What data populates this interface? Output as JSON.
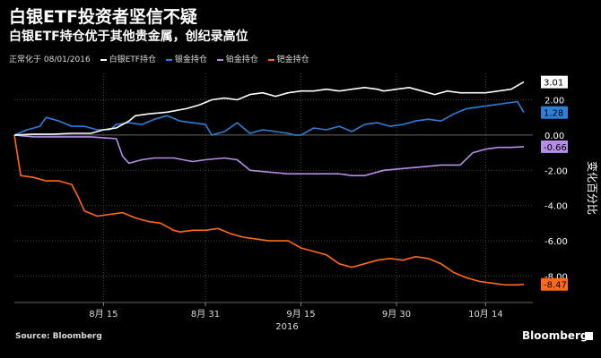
{
  "title": "白银ETF投资者坚信不疑",
  "subtitle": "白银ETF持仓优于其他贵金属，创纪录高位",
  "source": "Source: Bloomberg",
  "brand": "Bloomberg",
  "chart_data": {
    "type": "line",
    "normalized_label": "正常化于 08/01/2016",
    "ylabel": "变化百分比",
    "ylim": [
      -9.5,
      3.5
    ],
    "yticks": [
      {
        "v": 2,
        "label": "2.00"
      },
      {
        "v": 0,
        "label": "0.00"
      },
      {
        "v": -2,
        "label": "-2.00"
      },
      {
        "v": -4,
        "label": "-4.00"
      },
      {
        "v": -6,
        "label": "-6.00"
      },
      {
        "v": -8,
        "label": "-8.00"
      }
    ],
    "xlim": [
      0,
      80
    ],
    "xticks": [
      {
        "d": 14,
        "label": "8月 15"
      },
      {
        "d": 30,
        "label": "8月 31"
      },
      {
        "d": 45,
        "label": "9月 15"
      },
      {
        "d": 60,
        "label": "9月 30"
      },
      {
        "d": 74,
        "label": "10月 14"
      }
    ],
    "xyear": "2016",
    "series": [
      {
        "name": "白银ETF持仓",
        "color": "#ffffff",
        "last_label": "3.01",
        "x": [
          0,
          3,
          6,
          9,
          12,
          14,
          16,
          18,
          19,
          21,
          24,
          27,
          29,
          31,
          33,
          35,
          37,
          39,
          41,
          43,
          45,
          47,
          49,
          51,
          53,
          55,
          57,
          58,
          60,
          62,
          64,
          66,
          68,
          70,
          72,
          74,
          76,
          78,
          80
        ],
        "values": [
          0,
          0.05,
          0.05,
          0.1,
          0.1,
          0.3,
          0.4,
          0.8,
          1.1,
          1.2,
          1.3,
          1.5,
          1.7,
          2.0,
          2.1,
          2.0,
          2.3,
          2.4,
          2.2,
          2.4,
          2.5,
          2.5,
          2.6,
          2.5,
          2.6,
          2.7,
          2.6,
          2.5,
          2.6,
          2.7,
          2.5,
          2.3,
          2.5,
          2.4,
          2.4,
          2.4,
          2.5,
          2.6,
          3.01
        ]
      },
      {
        "name": "银金持仓",
        "color": "#2e7fd9",
        "last_label": "1.28",
        "x": [
          0,
          2,
          4,
          5,
          7,
          9,
          11,
          13,
          15,
          16,
          18,
          20,
          22,
          24,
          26,
          28,
          30,
          31,
          33,
          35,
          37,
          39,
          41,
          43,
          44,
          45,
          47,
          49,
          51,
          53,
          55,
          57,
          59,
          61,
          63,
          65,
          67,
          69,
          71,
          73,
          75,
          77,
          79,
          80
        ],
        "values": [
          0,
          0.3,
          0.5,
          1.0,
          0.8,
          0.5,
          0.5,
          0.3,
          0.3,
          0.6,
          0.7,
          0.6,
          0.9,
          1.1,
          0.8,
          0.7,
          0.6,
          0.0,
          0.2,
          0.7,
          0.1,
          0.3,
          0.2,
          0.1,
          0.0,
          0.0,
          0.4,
          0.3,
          0.5,
          0.2,
          0.6,
          0.7,
          0.5,
          0.6,
          0.8,
          0.9,
          0.8,
          1.2,
          1.5,
          1.6,
          1.7,
          1.8,
          1.9,
          1.28
        ]
      },
      {
        "name": "铂金持仓",
        "color": "#b68ee8",
        "last_label": "-0.66",
        "x": [
          0,
          3,
          6,
          9,
          12,
          16,
          17,
          18,
          20,
          22,
          25,
          28,
          30,
          33,
          35,
          37,
          40,
          43,
          46,
          49,
          51,
          53,
          55,
          58,
          61,
          64,
          67,
          70,
          72,
          74,
          76,
          78,
          80
        ],
        "values": [
          0,
          -0.1,
          -0.1,
          -0.1,
          -0.1,
          -0.2,
          -1.2,
          -1.6,
          -1.4,
          -1.3,
          -1.3,
          -1.5,
          -1.4,
          -1.3,
          -1.4,
          -2.0,
          -2.1,
          -2.2,
          -2.2,
          -2.2,
          -2.2,
          -2.3,
          -2.3,
          -2.0,
          -1.9,
          -1.8,
          -1.7,
          -1.7,
          -1.0,
          -0.8,
          -0.7,
          -0.7,
          -0.66
        ]
      },
      {
        "name": "钯金持仓",
        "color": "#ff6a1a",
        "last_label": "-8.47",
        "x": [
          0,
          1,
          3,
          5,
          7,
          9,
          10,
          11,
          13,
          15,
          17,
          19,
          21,
          23,
          25,
          26,
          28,
          30,
          32,
          34,
          36,
          38,
          40,
          43,
          45,
          47,
          49,
          51,
          53,
          55,
          57,
          59,
          61,
          63,
          65,
          67,
          69,
          71,
          73,
          75,
          77,
          79,
          80
        ],
        "values": [
          0,
          -2.3,
          -2.4,
          -2.6,
          -2.6,
          -2.8,
          -3.5,
          -4.3,
          -4.6,
          -4.5,
          -4.4,
          -4.7,
          -4.9,
          -5.0,
          -5.4,
          -5.5,
          -5.4,
          -5.4,
          -5.3,
          -5.6,
          -5.8,
          -5.9,
          -6.0,
          -6.0,
          -6.4,
          -6.6,
          -6.8,
          -7.3,
          -7.5,
          -7.3,
          -7.1,
          -7.0,
          -7.1,
          -6.9,
          -7.0,
          -7.3,
          -7.8,
          -8.1,
          -8.3,
          -8.4,
          -8.5,
          -8.5,
          -8.47
        ]
      }
    ]
  }
}
